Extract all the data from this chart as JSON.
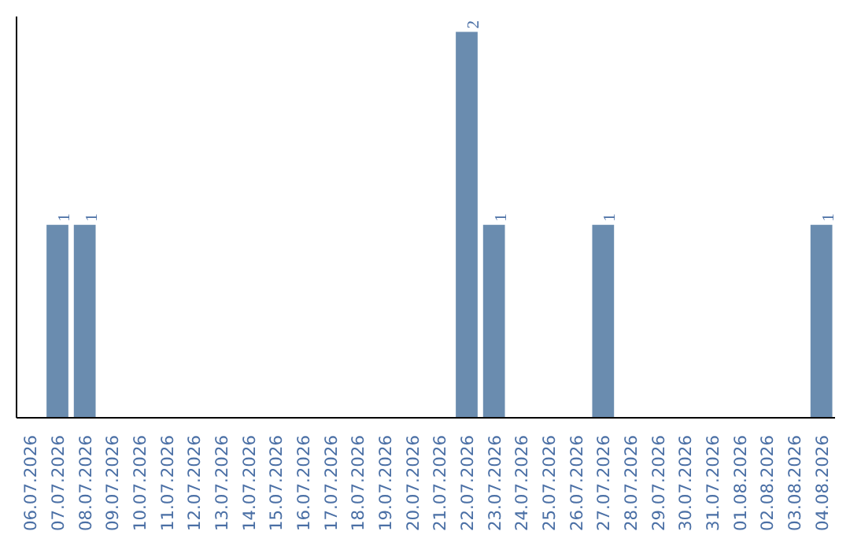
{
  "chart_data": {
    "type": "bar",
    "categories": [
      "06.07.2026",
      "07.07.2026",
      "08.07.2026",
      "09.07.2026",
      "10.07.2026",
      "11.07.2026",
      "12.07.2026",
      "13.07.2026",
      "14.07.2026",
      "15.07.2026",
      "16.07.2026",
      "17.07.2026",
      "18.07.2026",
      "19.07.2026",
      "20.07.2026",
      "21.07.2026",
      "22.07.2026",
      "23.07.2026",
      "24.07.2026",
      "25.07.2026",
      "26.07.2026",
      "27.07.2026",
      "28.07.2026",
      "29.07.2026",
      "30.07.2026",
      "31.07.2026",
      "01.08.2026",
      "02.08.2026",
      "03.08.2026",
      "04.08.2026"
    ],
    "values": [
      0,
      1,
      1,
      0,
      0,
      0,
      0,
      0,
      0,
      0,
      0,
      0,
      0,
      0,
      0,
      0,
      2,
      1,
      0,
      0,
      0,
      1,
      0,
      0,
      0,
      0,
      0,
      0,
      0,
      1
    ],
    "value_labels": [
      null,
      "1",
      "1",
      null,
      null,
      null,
      null,
      null,
      null,
      null,
      null,
      null,
      null,
      null,
      null,
      null,
      "2",
      "1",
      null,
      null,
      null,
      "1",
      null,
      null,
      null,
      null,
      null,
      null,
      null,
      "1"
    ],
    "color": "#6a8caf",
    "ylim": [
      0,
      2.08
    ],
    "tick_labels": "x"
  }
}
